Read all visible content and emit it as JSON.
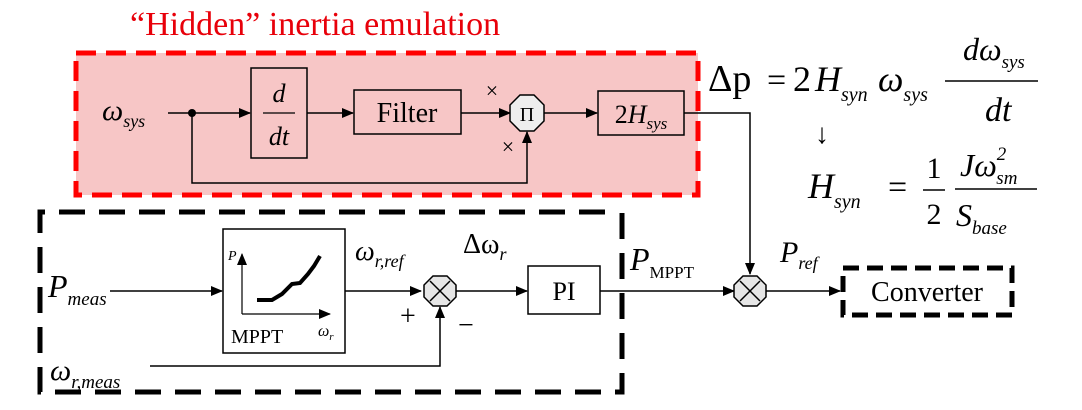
{
  "title": "“Hidden” inertia emulation",
  "colors": {
    "title_red": "#e8000a",
    "highlight_fill": "#f7c6c6",
    "dashed_red": "#ff0000",
    "ink": "#000000"
  },
  "inertia_loop": {
    "input": {
      "main": "ω",
      "sub": "sys"
    },
    "derivative": {
      "num": "d",
      "den": "dt"
    },
    "filter": "Filter",
    "multiplier": "Π",
    "mult_sign_top": "×",
    "mult_sign_bottom": "×",
    "gain": {
      "coef": "2",
      "main": "H",
      "sub": "sys"
    }
  },
  "mppt_loop": {
    "p_meas": {
      "main": "P",
      "sub": "meas"
    },
    "mppt_block": {
      "label": "MPPT",
      "axis_y": "P",
      "axis_x": {
        "main": "ω",
        "sub": "r"
      }
    },
    "omega_ref": {
      "main": "ω",
      "sub": "r,ref"
    },
    "delta_omega": {
      "main": "Δω",
      "sub": "r"
    },
    "plus": "+",
    "minus": "−",
    "pi": "PI",
    "omega_meas": {
      "main": "ω",
      "sub": "r,meas"
    }
  },
  "output": {
    "p_mppt": {
      "main": "P",
      "sub": "MPPT"
    },
    "p_ref": {
      "main": "P",
      "sub": "ref"
    },
    "converter": "Converter"
  },
  "equations": {
    "eq1": {
      "lhs": "Δp",
      "eq": "=",
      "coef": "2",
      "h": "H",
      "h_sub": "syn",
      "w": "ω",
      "w_sub": "sys",
      "num": "dω",
      "num_sub": "sys",
      "den": "dt"
    },
    "arrow": "↓",
    "eq2": {
      "lhs": "H",
      "lhs_sub": "syn",
      "eq": "=",
      "frac_num": "1",
      "frac_den": "2",
      "num_j": "Jω",
      "num_sup": "2",
      "num_sub": "sm",
      "den": "S",
      "den_sub": "base"
    }
  }
}
